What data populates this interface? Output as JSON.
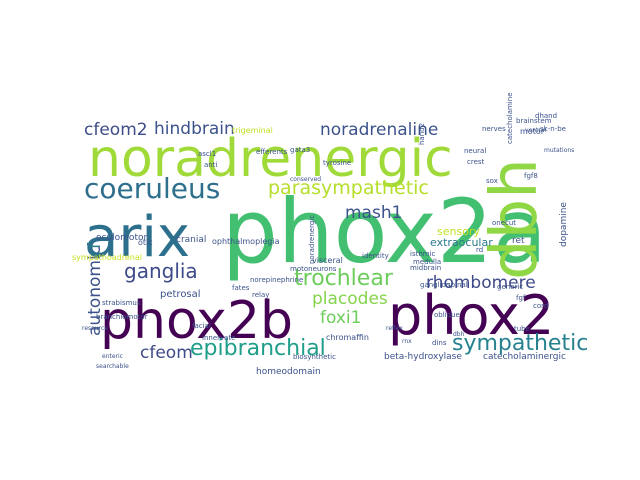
{
  "words": [
    {
      "text": "phox2a",
      "color": "#43bf71"
    },
    {
      "text": "noradrenergic",
      "color": "#a0da39"
    },
    {
      "text": "phox2b",
      "color": "#440154"
    },
    {
      "text": "phox2",
      "color": "#440154"
    },
    {
      "text": "arix",
      "color": "#2d708e"
    },
    {
      "text": "dbh",
      "color": "#8fd744"
    },
    {
      "text": "coeruleus",
      "color": "#2e6f8e"
    },
    {
      "text": "parasympathetic",
      "color": "#b5de2b"
    },
    {
      "text": "noradrenaline",
      "color": "#3b528b"
    },
    {
      "text": "hindbrain",
      "color": "#3b528b"
    },
    {
      "text": "cfeom2",
      "color": "#3e4a89"
    },
    {
      "text": "sympathetic",
      "color": "#26828e"
    },
    {
      "text": "epibranchial",
      "color": "#1f9e89"
    },
    {
      "text": "trochlear",
      "color": "#6ccd5a"
    },
    {
      "text": "ganglia",
      "color": "#3e4a89"
    },
    {
      "text": "mash1",
      "color": "#3b528b"
    },
    {
      "text": "autonomic",
      "color": "#3b528b"
    },
    {
      "text": "rhombomere",
      "color": "#3e4a89"
    },
    {
      "text": "placodes",
      "color": "#84d44b"
    },
    {
      "text": "foxi1",
      "color": "#6ccd5a"
    },
    {
      "text": "cfeom",
      "color": "#3e4a89"
    },
    {
      "text": "rf",
      "color": "#2a788e"
    },
    {
      "text": "sensory",
      "color": "#c2df23"
    },
    {
      "text": "extraocular",
      "color": "#2a788e"
    },
    {
      "text": "oculomotor",
      "color": "#3b528b"
    },
    {
      "text": "cranial",
      "color": "#3b528b"
    },
    {
      "text": "ophthalmoplegia",
      "color": "#3b528b"
    },
    {
      "text": "petrosal",
      "color": "#3b528b"
    },
    {
      "text": "chromaffin",
      "color": "#3b528b"
    },
    {
      "text": "homeodomain",
      "color": "#3b528b"
    },
    {
      "text": "beta-hydroxylase",
      "color": "#3b528b"
    },
    {
      "text": "catecholaminergic",
      "color": "#3b528b"
    },
    {
      "text": "biosynthetic",
      "color": "#3b528b"
    },
    {
      "text": "visceral",
      "color": "#3b528b"
    },
    {
      "text": "motoneurons",
      "color": "#3b528b"
    },
    {
      "text": "dopamine",
      "color": "#3b528b"
    },
    {
      "text": "ret",
      "color": "#3b528b"
    },
    {
      "text": "noradrenergic",
      "color": "#3b528b"
    },
    {
      "text": "motor",
      "color": "#3b528b"
    },
    {
      "text": "catecholamine",
      "color": "#3b528b"
    },
    {
      "text": "nerves",
      "color": "#3b528b"
    },
    {
      "text": "brainstem",
      "color": "#3b528b"
    },
    {
      "text": "sympathoadrenal",
      "color": "#c8e020"
    },
    {
      "text": "strabismus",
      "color": "#3b528b"
    },
    {
      "text": "resource",
      "color": "#3b528b"
    },
    {
      "text": "branchiomotor",
      "color": "#3b528b"
    },
    {
      "text": "enteric",
      "color": "#3b528b"
    },
    {
      "text": "searchable",
      "color": "#3b528b"
    },
    {
      "text": "trigeminal",
      "color": "#c2df23"
    },
    {
      "text": "norepinephrine",
      "color": "#3b528b"
    },
    {
      "text": "relay",
      "color": "#3b528b"
    },
    {
      "text": "ganglion",
      "color": "#3b528b"
    },
    {
      "text": "spinal",
      "color": "#3b528b"
    },
    {
      "text": "generic",
      "color": "#3b528b"
    },
    {
      "text": "midbrain",
      "color": "#3b528b"
    },
    {
      "text": "tyrosine",
      "color": "#3b528b"
    },
    {
      "text": "neural",
      "color": "#3b528b"
    },
    {
      "text": "crest",
      "color": "#3b528b"
    },
    {
      "text": "hand2",
      "color": "#3b528b"
    },
    {
      "text": "ascl1",
      "color": "#3b528b"
    },
    {
      "text": "anti",
      "color": "#3b528b"
    },
    {
      "text": "gata3",
      "color": "#3b528b"
    },
    {
      "text": "isthmic",
      "color": "#3b528b"
    },
    {
      "text": "identity",
      "color": "#3b528b"
    },
    {
      "text": "medulla",
      "color": "#3b528b"
    },
    {
      "text": "onecut",
      "color": "#3b528b"
    },
    {
      "text": "ventral",
      "color": "#3b528b"
    },
    {
      "text": "cord",
      "color": "#3b528b"
    },
    {
      "text": "tube",
      "color": "#3b528b"
    },
    {
      "text": "dbh",
      "color": "#3b528b"
    },
    {
      "text": "fgf8",
      "color": "#3b528b"
    },
    {
      "text": "fgf",
      "color": "#3b528b"
    },
    {
      "text": "facial",
      "color": "#3b528b"
    },
    {
      "text": "innervate",
      "color": "#3b528b"
    },
    {
      "text": "otic",
      "color": "#3b528b"
    },
    {
      "text": "fates",
      "color": "#3b528b"
    },
    {
      "text": "efferents",
      "color": "#3b528b"
    },
    {
      "text": "dins",
      "color": "#3b528b"
    },
    {
      "text": "sox",
      "color": "#3b528b"
    },
    {
      "text": "rnx",
      "color": "#3b528b"
    },
    {
      "text": "oblique",
      "color": "#3b528b"
    },
    {
      "text": "reflex",
      "color": "#3b528b"
    },
    {
      "text": "sk-n-be",
      "color": "#3b528b"
    },
    {
      "text": "dhand",
      "color": "#3b528b"
    },
    {
      "text": "mutations",
      "color": "#3b528b"
    },
    {
      "text": "conserved",
      "color": "#3b528b"
    },
    {
      "text": "rd",
      "color": "#3b528b"
    }
  ]
}
